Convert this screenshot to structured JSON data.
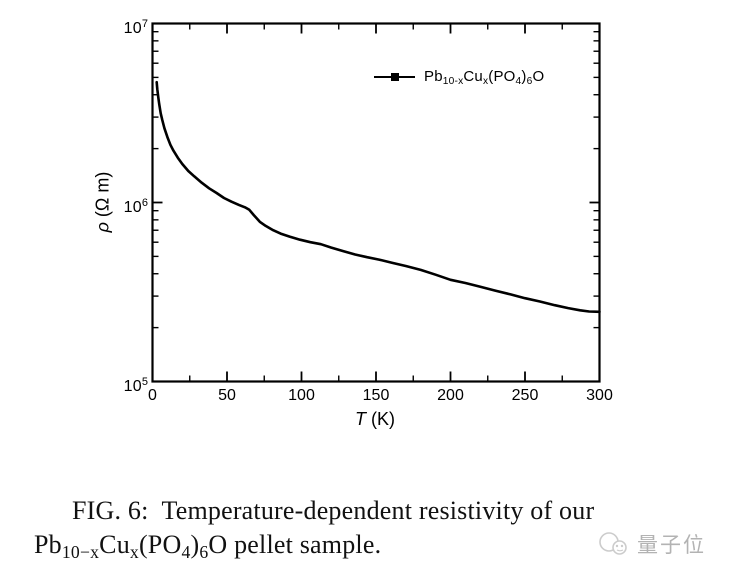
{
  "figure": {
    "background": "#ffffff",
    "ink_color": "#000000",
    "curve_color": "#000000"
  },
  "chart_data": {
    "type": "line",
    "title": "",
    "xlabel": "T (K)",
    "ylabel": "rho (Ohm m)",
    "xlabel_segments": [
      {
        "t": "T",
        "i": true
      },
      {
        "t": " (K)"
      }
    ],
    "ylabel_segments": [
      {
        "t": "ρ",
        "i": true
      },
      {
        "t": " (Ω m)"
      }
    ],
    "x_axis": {
      "scale": "linear",
      "min": 0,
      "max": 300,
      "major_ticks": [
        0,
        50,
        100,
        150,
        200,
        250,
        300
      ],
      "minor_step": 25
    },
    "y_axis": {
      "scale": "log",
      "min": 100000,
      "max": 10000000,
      "decade_exponents": [
        5,
        6,
        7
      ],
      "minor_mantissas": [
        2,
        3,
        4,
        5,
        6,
        7,
        8,
        9
      ],
      "tick_labels": [
        {
          "base": "10",
          "exp": "7"
        },
        {
          "base": "10",
          "exp": "6"
        },
        {
          "base": "10",
          "exp": "5"
        }
      ]
    },
    "grid": false,
    "legend_position": "top-right-inside",
    "series": [
      {
        "name": "Pb10-xCux(PO4)6O",
        "marker": "filled-square",
        "line": "solid",
        "points": [
          [
            2.8,
            4700000
          ],
          [
            3.2,
            4300000
          ],
          [
            3.8,
            3900000
          ],
          [
            4.5,
            3550000
          ],
          [
            5.5,
            3150000
          ],
          [
            6.5,
            2900000
          ],
          [
            8,
            2600000
          ],
          [
            10,
            2320000
          ],
          [
            12,
            2100000
          ],
          [
            14,
            1950000
          ],
          [
            17,
            1780000
          ],
          [
            20,
            1640000
          ],
          [
            24,
            1500000
          ],
          [
            28,
            1400000
          ],
          [
            33,
            1290000
          ],
          [
            38,
            1200000
          ],
          [
            43,
            1130000
          ],
          [
            48,
            1060000
          ],
          [
            53,
            1010000
          ],
          [
            58,
            970000
          ],
          [
            62,
            940000
          ],
          [
            65,
            910000
          ],
          [
            68,
            850000
          ],
          [
            72,
            780000
          ],
          [
            76,
            740000
          ],
          [
            81,
            700000
          ],
          [
            86,
            670000
          ],
          [
            92,
            645000
          ],
          [
            99,
            620000
          ],
          [
            106,
            600000
          ],
          [
            113,
            585000
          ],
          [
            120,
            560000
          ],
          [
            128,
            535000
          ],
          [
            136,
            512000
          ],
          [
            144,
            495000
          ],
          [
            152,
            480000
          ],
          [
            161,
            460000
          ],
          [
            170,
            442000
          ],
          [
            180,
            420000
          ],
          [
            190,
            395000
          ],
          [
            200,
            370000
          ],
          [
            210,
            355000
          ],
          [
            220,
            338000
          ],
          [
            230,
            322000
          ],
          [
            240,
            307000
          ],
          [
            250,
            292000
          ],
          [
            260,
            280000
          ],
          [
            270,
            267000
          ],
          [
            279,
            257000
          ],
          [
            287,
            250000
          ],
          [
            293,
            246000
          ],
          [
            300,
            245000
          ]
        ]
      }
    ]
  },
  "legend": {
    "label_segments": [
      {
        "t": "Pb"
      },
      {
        "t": "10-x",
        "sub": true
      },
      {
        "t": "Cu"
      },
      {
        "t": "x",
        "sub": true
      },
      {
        "t": "(PO"
      },
      {
        "t": "4",
        "sub": true
      },
      {
        "t": ")"
      },
      {
        "t": "6",
        "sub": true
      },
      {
        "t": "O"
      }
    ]
  },
  "caption": {
    "line1": "FIG. 6:  Temperature-dependent resistivity of our",
    "line2_segments": [
      {
        "t": "Pb"
      },
      {
        "t": "10−x",
        "sub": true
      },
      {
        "t": "Cu"
      },
      {
        "t": "x",
        "sub": true
      },
      {
        "t": "(PO"
      },
      {
        "t": "4",
        "sub": true
      },
      {
        "t": ")"
      },
      {
        "t": "6",
        "sub": true
      },
      {
        "t": "O"
      },
      {
        "t": " pellet sample."
      }
    ]
  },
  "watermark": {
    "text": "量子位",
    "logo": "qbitai-logo",
    "text_color": "#b3b3b3",
    "logo_color": "#cccccc"
  }
}
